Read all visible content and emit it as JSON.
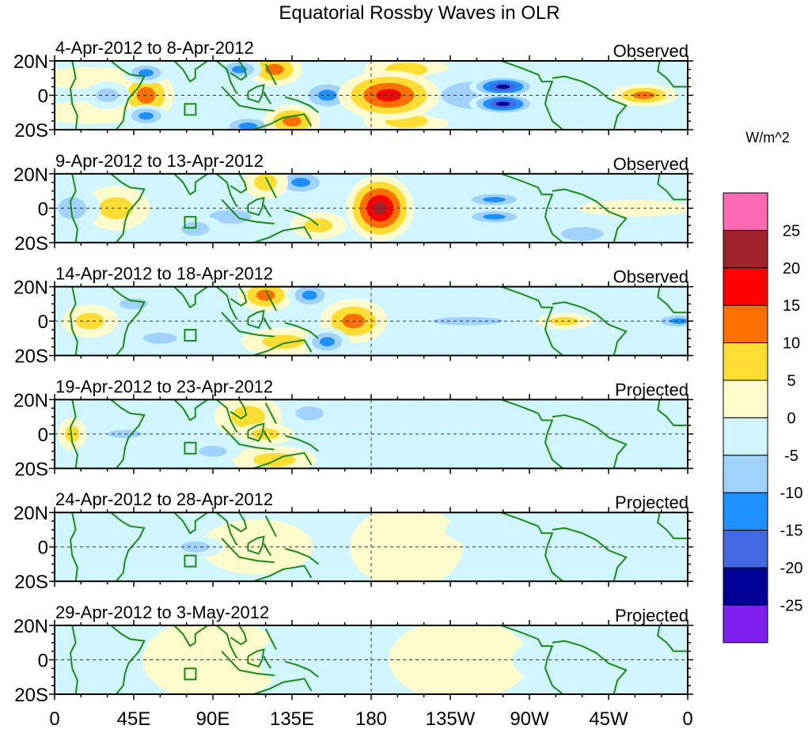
{
  "chart_data": {
    "type": "heatmap",
    "title": "Equatorial Rossby Waves in OLR",
    "units": "W/m^2",
    "x_ticks": [
      "0",
      "45E",
      "90E",
      "135E",
      "180",
      "135W",
      "90W",
      "45W",
      "0"
    ],
    "y_ticks": [
      "20N",
      "0",
      "20S"
    ],
    "xlim_deg_east": [
      0,
      360
    ],
    "ylim_deg": [
      -20,
      20
    ],
    "colorbar": {
      "levels": [
        "25",
        "20",
        "15",
        "10",
        "5",
        "0",
        "-5",
        "-10",
        "-15",
        "-20",
        "-25"
      ],
      "colors": [
        "#ff69b4",
        "#a0222a",
        "#ff0000",
        "#ff7000",
        "#ffdd33",
        "#fffbcc",
        "#d2f6ff",
        "#a0d2ff",
        "#1e90ff",
        "#4169e1",
        "#000096",
        "#8020f0"
      ]
    },
    "panels": [
      {
        "period": "4-Apr-2012 to 8-Apr-2012",
        "status": "Observed",
        "anomalies": [
          [
            20,
            10,
            5,
            20,
            4
          ],
          [
            20,
            -10,
            5,
            20,
            4
          ],
          [
            200,
            15,
            6,
            15,
            5
          ],
          [
            200,
            -15,
            6,
            15,
            5
          ],
          [
            240,
            0,
            -8,
            25,
            10
          ],
          [
            52,
            0,
            13,
            10,
            9
          ],
          [
            52,
            13,
            -12,
            8,
            4
          ],
          [
            52,
            -12,
            -12,
            8,
            4
          ],
          [
            30,
            0,
            -10,
            8,
            5
          ],
          [
            125,
            15,
            13,
            10,
            6
          ],
          [
            105,
            15,
            -14,
            8,
            4
          ],
          [
            110,
            -18,
            -15,
            10,
            4
          ],
          [
            135,
            -15,
            12,
            10,
            6
          ],
          [
            155,
            0,
            -12,
            10,
            6
          ],
          [
            190,
            0,
            20,
            18,
            9
          ],
          [
            255,
            5,
            -22,
            12,
            4
          ],
          [
            255,
            -5,
            -22,
            12,
            4
          ],
          [
            335,
            0,
            13,
            12,
            4
          ]
        ]
      },
      {
        "period": "9-Apr-2012 to 13-Apr-2012",
        "status": "Observed",
        "anomalies": [
          [
            330,
            0,
            5,
            20,
            3
          ],
          [
            35,
            0,
            6,
            12,
            8
          ],
          [
            100,
            -5,
            -8,
            15,
            5
          ],
          [
            300,
            -15,
            -8,
            15,
            5
          ],
          [
            185,
            0,
            22,
            12,
            12
          ],
          [
            140,
            15,
            -14,
            10,
            5
          ],
          [
            120,
            15,
            10,
            8,
            6
          ],
          [
            250,
            5,
            -14,
            12,
            3
          ],
          [
            250,
            -5,
            -14,
            12,
            3
          ],
          [
            10,
            0,
            -10,
            10,
            8
          ],
          [
            80,
            -12,
            -10,
            10,
            5
          ],
          [
            150,
            -10,
            8,
            10,
            5
          ]
        ]
      },
      {
        "period": "14-Apr-2012 to 18-Apr-2012",
        "status": "Observed",
        "anomalies": [
          [
            235,
            0,
            -6,
            25,
            3
          ],
          [
            20,
            0,
            7,
            10,
            6
          ],
          [
            120,
            15,
            14,
            10,
            6
          ],
          [
            145,
            15,
            -15,
            8,
            5
          ],
          [
            170,
            0,
            12,
            12,
            8
          ],
          [
            130,
            -12,
            10,
            15,
            5
          ],
          [
            155,
            -12,
            -12,
            8,
            5
          ],
          [
            45,
            10,
            -8,
            10,
            4
          ],
          [
            60,
            -10,
            -8,
            12,
            4
          ],
          [
            355,
            0,
            -13,
            10,
            3
          ],
          [
            290,
            0,
            6,
            10,
            3
          ]
        ]
      },
      {
        "period": "19-Apr-2012 to 23-Apr-2012",
        "status": "Projected",
        "anomalies": [
          [
            230,
            0,
            -5,
            20,
            5
          ],
          [
            110,
            10,
            10,
            12,
            8
          ],
          [
            125,
            -15,
            10,
            15,
            5
          ],
          [
            120,
            0,
            8,
            10,
            4
          ],
          [
            145,
            12,
            -8,
            10,
            5
          ],
          [
            10,
            0,
            6,
            5,
            6
          ],
          [
            40,
            0,
            -6,
            12,
            3
          ],
          [
            90,
            -10,
            -6,
            10,
            4
          ]
        ]
      },
      {
        "period": "24-Apr-2012 to 28-Apr-2012",
        "status": "Projected",
        "anomalies": [
          [
            115,
            0,
            5,
            20,
            10
          ],
          [
            80,
            0,
            -6,
            10,
            4
          ],
          [
            200,
            0,
            3,
            20,
            15
          ],
          [
            270,
            10,
            -3,
            30,
            8
          ]
        ]
      },
      {
        "period": "29-Apr-2012 to 3-May-2012",
        "status": "Projected",
        "anomalies": [
          [
            90,
            0,
            4,
            25,
            15
          ],
          [
            140,
            0,
            -4,
            15,
            10
          ],
          [
            230,
            0,
            3,
            25,
            15
          ],
          [
            300,
            0,
            -3,
            25,
            10
          ]
        ]
      }
    ]
  }
}
